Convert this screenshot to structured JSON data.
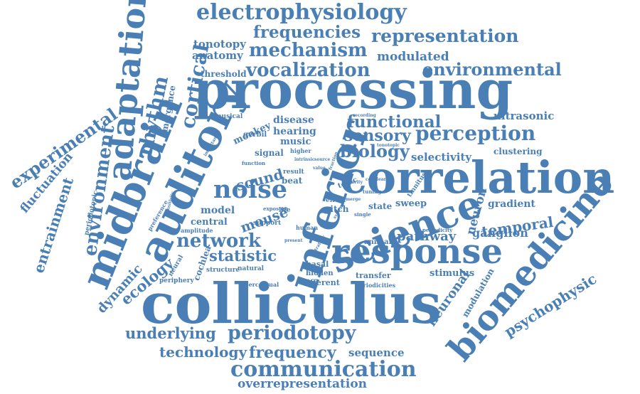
{
  "colors": {
    "word": "#4a7fb5",
    "background": "#ffffff"
  },
  "words": [
    "processing",
    "colliculus",
    "correlation",
    "auditory",
    "midbrain",
    "inferior",
    "adaptation",
    "science",
    "response",
    "biomedicine",
    "periodotopy",
    "communication",
    "electrophysiology",
    "noise",
    "representation",
    "frequencies",
    "mechanism",
    "vocalization",
    "environmental",
    "perception",
    "functional",
    "sensory",
    "biology",
    "frequency",
    "underlying",
    "technology",
    "overrepresentation",
    "cortical",
    "rhythm",
    "experimental",
    "environment",
    "entrainment",
    "fluctuation",
    "dynamic",
    "ecology",
    "network",
    "statistic",
    "sound",
    "mouse",
    "temporal",
    "neuron",
    "neuronal",
    "psychophysic",
    "pathway",
    "ganglion",
    "selectivity",
    "ultrasonic",
    "modulated",
    "tonotopy",
    "anatomy",
    "threshold",
    "emergence",
    "disease",
    "hearing",
    "music",
    "signal",
    "model",
    "central",
    "cochlea",
    "stimulus",
    "transfer",
    "different",
    "sequence",
    "modulation",
    "gradient",
    "clustering",
    "sweep",
    "state",
    "pitch",
    "basal",
    "hidden",
    "animal",
    "monkey",
    "gerbil",
    "musical",
    "beat",
    "result",
    "human",
    "support",
    "life",
    "effect",
    "structure",
    "natural",
    "periphery",
    "perceptual",
    "periodicities",
    "periodicity",
    "tinnitus",
    "amplitude",
    "preference",
    "periodotopic",
    "higher",
    "topic",
    "exposure",
    "majority",
    "important",
    "tuning",
    "recording",
    "tonotopic",
    "single",
    "present",
    "function",
    "intrinsic",
    "strategy",
    "neural",
    "sensitivity",
    "system",
    "cochlear",
    "source",
    "emerge",
    "fraction",
    "value"
  ]
}
